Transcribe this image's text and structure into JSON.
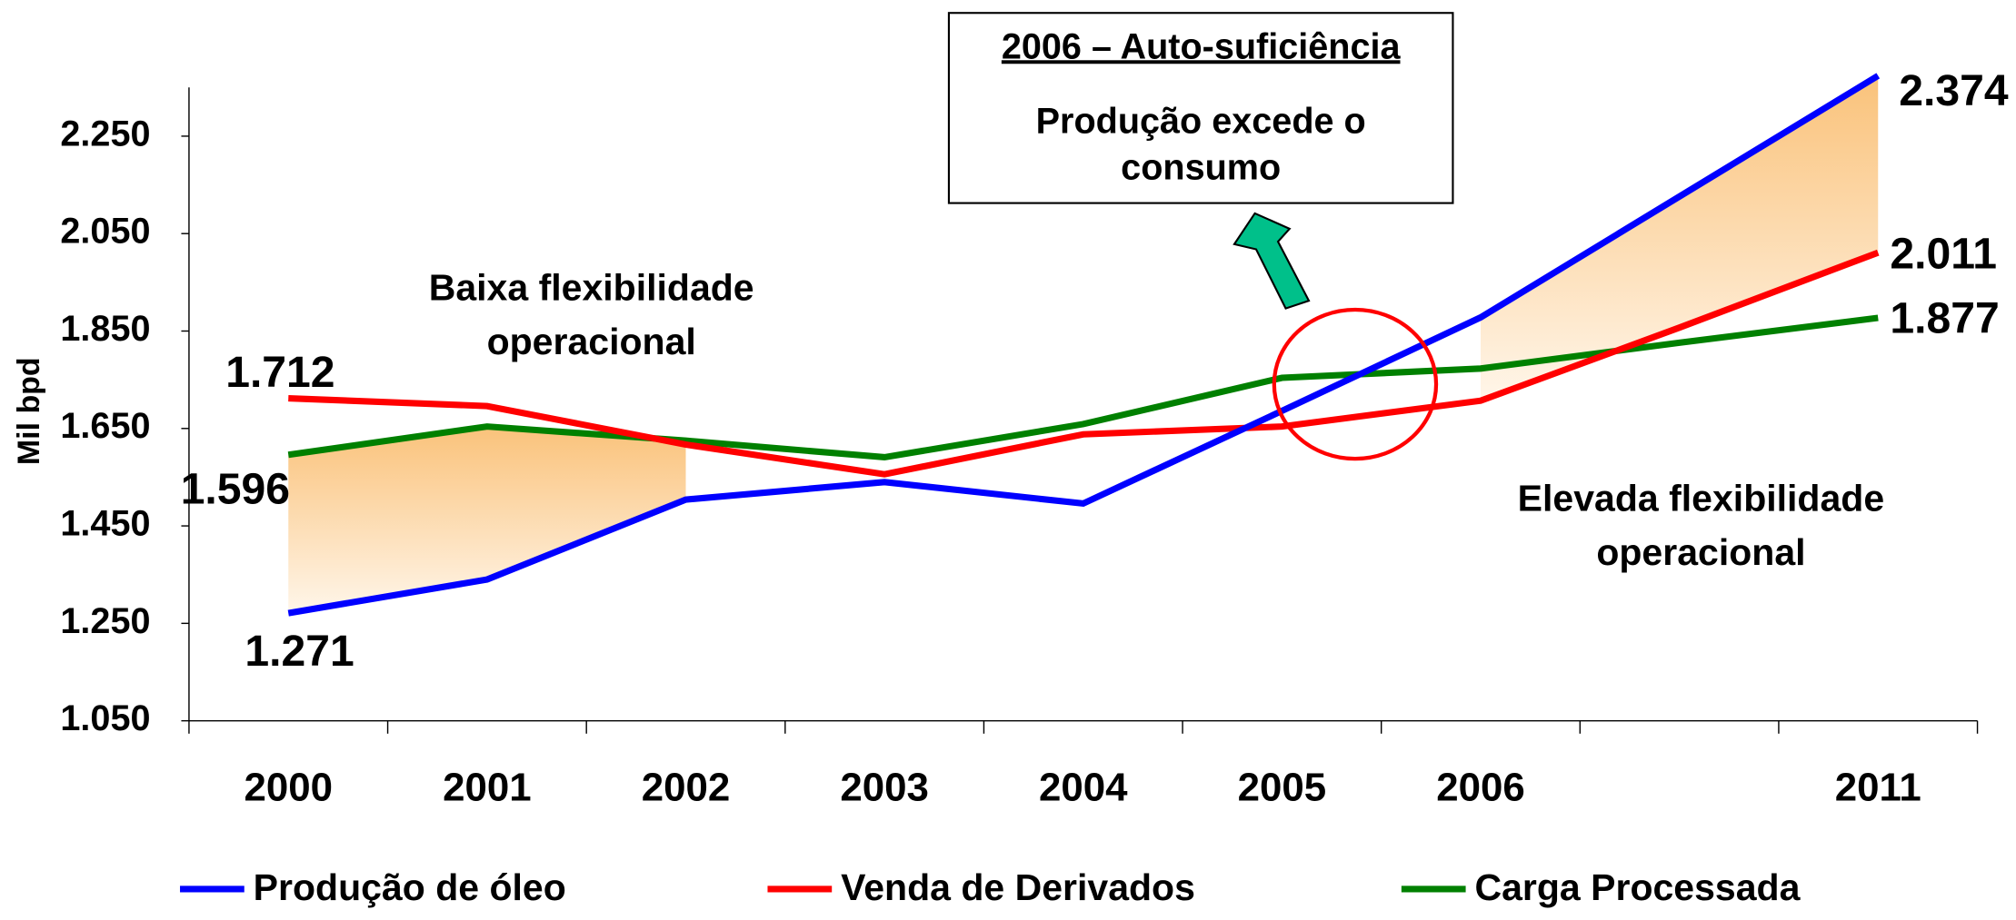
{
  "chart_data": {
    "type": "line",
    "ylabel": "Mil bpd",
    "categories": [
      "2000",
      "2001",
      "2002",
      "2003",
      "2004",
      "2005",
      "2006",
      null,
      "2011"
    ],
    "series": [
      {
        "name": "Produção de óleo",
        "color": "#0000ff",
        "values": [
          1.271,
          1.34,
          1.504,
          1.54,
          1.496,
          1.686,
          1.878,
          2.126,
          2.374
        ]
      },
      {
        "name": "Venda de Derivados",
        "color": "#ff0000",
        "values": [
          1.712,
          1.696,
          1.617,
          1.556,
          1.638,
          1.654,
          1.707,
          1.857,
          2.011
        ]
      },
      {
        "name": "Carga Processada",
        "color": "#008000",
        "values": [
          1.596,
          1.654,
          1.625,
          1.591,
          1.659,
          1.754,
          1.773,
          1.826,
          1.877
        ]
      }
    ],
    "ylim": [
      1.05,
      2.35
    ],
    "yticks": [
      {
        "value": 1.05,
        "label": "1.050"
      },
      {
        "value": 1.25,
        "label": "1.250"
      },
      {
        "value": 1.45,
        "label": "1.450"
      },
      {
        "value": 1.65,
        "label": "1.650"
      },
      {
        "value": 1.85,
        "label": "1.850"
      },
      {
        "value": 2.05,
        "label": "2.050"
      },
      {
        "value": 2.25,
        "label": "2.250"
      }
    ],
    "annotations": {
      "box_title": "2006 – Auto-suficiência",
      "box_text": [
        "Produção excede o",
        "consumo"
      ],
      "low_flex": [
        "Baixa flexibilidade",
        "operacional"
      ],
      "high_flex": [
        "Elevada flexibilidade",
        "operacional"
      ]
    }
  }
}
